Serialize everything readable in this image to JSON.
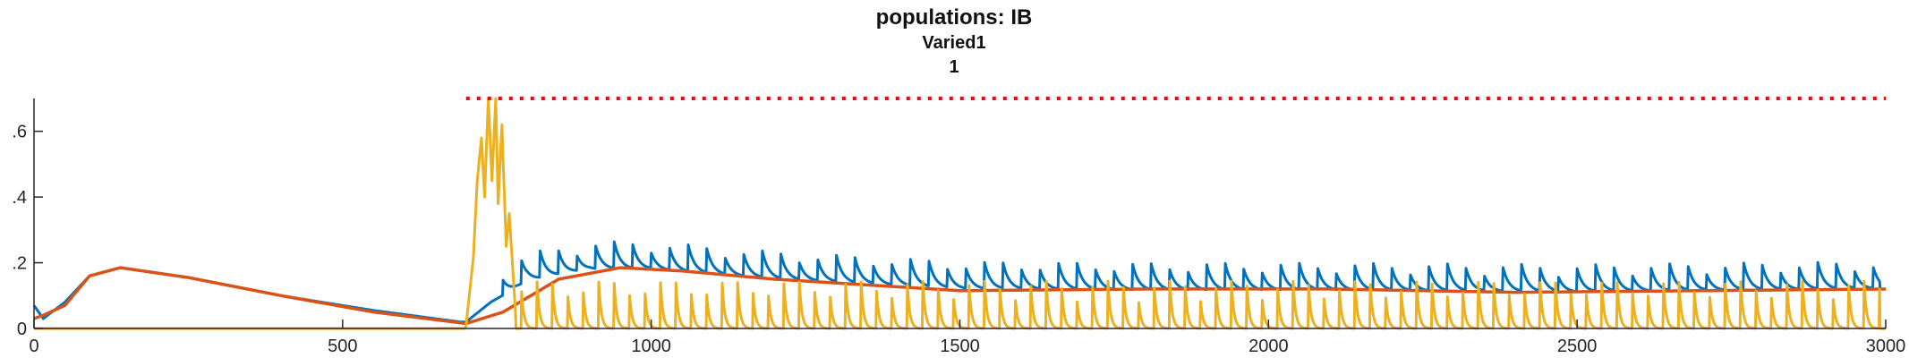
{
  "title_lines": [
    "populations: IB",
    "Varied1",
    "1"
  ],
  "chart_data": {
    "type": "line",
    "title": "populations: IB",
    "subtitles": [
      "Varied1",
      "1"
    ],
    "xlim": [
      0,
      3000
    ],
    "ylim": [
      0,
      0.7
    ],
    "xticks": [
      0,
      500,
      1000,
      1500,
      2000,
      2500,
      3000
    ],
    "xtick_labels": [
      "0",
      "500",
      "1000",
      "1500",
      "2000",
      "2500",
      "3000"
    ],
    "yticks": [
      0,
      0.2,
      0.4,
      0.6
    ],
    "ytick_labels": [
      "0",
      ".2",
      ".4",
      ".6"
    ],
    "grid": false,
    "colors": {
      "blue": "#0072BD",
      "orange": "#D95319",
      "yellow": "#EDB120",
      "threshold": "#FF0000"
    },
    "series": [
      {
        "color": "#0072BD",
        "baseline": [
          [
            0,
            0.07
          ],
          [
            15,
            0.03
          ],
          [
            50,
            0.08
          ],
          [
            90,
            0.16
          ],
          [
            140,
            0.185
          ],
          [
            250,
            0.155
          ],
          [
            400,
            0.1
          ],
          [
            550,
            0.055
          ],
          [
            690,
            0.02
          ],
          [
            700,
            0.02
          ],
          [
            740,
            0.08
          ],
          [
            800,
            0.145
          ],
          [
            900,
            0.18
          ],
          [
            1000,
            0.18
          ],
          [
            1200,
            0.15
          ],
          [
            1500,
            0.12
          ],
          [
            1800,
            0.115
          ],
          [
            2100,
            0.115
          ],
          [
            2500,
            0.11
          ],
          [
            3000,
            0.12
          ]
        ],
        "spikes": {
          "start": 760,
          "end": 2990,
          "period": 30,
          "amplitude": 0.07,
          "decay": 10
        }
      },
      {
        "color": "#D95319",
        "baseline": [
          [
            0,
            0.03
          ],
          [
            15,
            0.04
          ],
          [
            50,
            0.07
          ],
          [
            90,
            0.16
          ],
          [
            140,
            0.185
          ],
          [
            250,
            0.155
          ],
          [
            400,
            0.1
          ],
          [
            550,
            0.05
          ],
          [
            700,
            0.015
          ],
          [
            760,
            0.05
          ],
          [
            850,
            0.15
          ],
          [
            950,
            0.185
          ],
          [
            1050,
            0.175
          ],
          [
            1200,
            0.15
          ],
          [
            1500,
            0.115
          ],
          [
            1800,
            0.12
          ],
          [
            2100,
            0.12
          ],
          [
            2400,
            0.11
          ],
          [
            2700,
            0.115
          ],
          [
            3000,
            0.12
          ]
        ],
        "spikes": null
      },
      {
        "color": "#EDB120",
        "baseline": [
          [
            0,
            0.0
          ],
          [
            700,
            0.0
          ],
          [
            3000,
            0.0
          ]
        ],
        "burst": [
          [
            700,
            0.01
          ],
          [
            712,
            0.22
          ],
          [
            718,
            0.45
          ],
          [
            725,
            0.58
          ],
          [
            730,
            0.4
          ],
          [
            736,
            0.7
          ],
          [
            742,
            0.45
          ],
          [
            748,
            0.7
          ],
          [
            752,
            0.38
          ],
          [
            758,
            0.62
          ],
          [
            765,
            0.25
          ],
          [
            770,
            0.35
          ],
          [
            780,
            0.05
          ]
        ],
        "spikes": {
          "start": 790,
          "end": 2990,
          "period": 25,
          "amplitude": 0.12,
          "decay": 4
        }
      }
    ],
    "threshold_line": {
      "y": 0.7,
      "x_start": 700,
      "x_end": 3000,
      "style": "dotted",
      "color": "#FF0000"
    }
  }
}
